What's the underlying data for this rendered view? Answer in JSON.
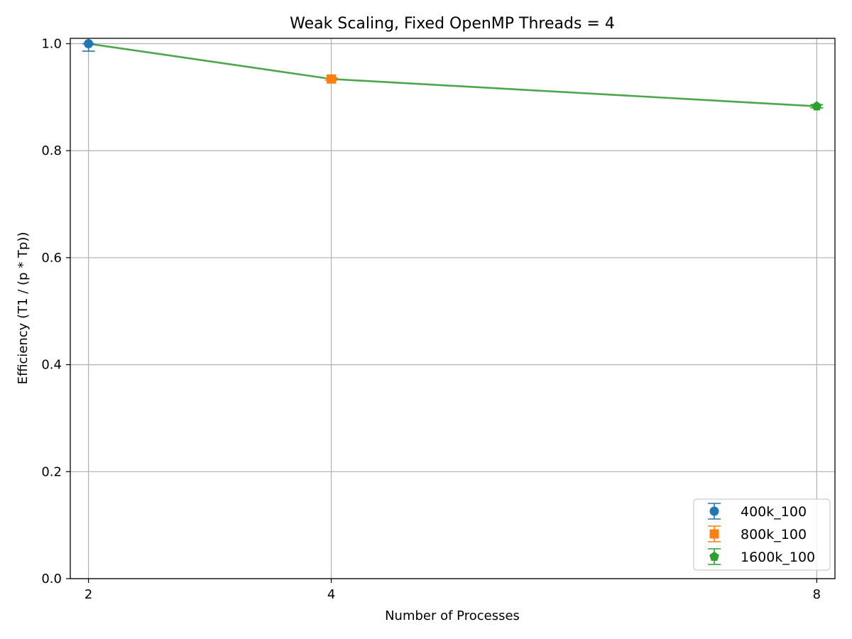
{
  "chart_data": {
    "type": "line",
    "title": "Weak Scaling, Fixed OpenMP Threads = 4",
    "xlabel": "Number of Processes",
    "ylabel": "Efficiency (T1 / (p * Tp))",
    "x_ticks": [
      "2",
      "4",
      "8"
    ],
    "y_ticks": [
      "0.0",
      "0.2",
      "0.4",
      "0.6",
      "0.8",
      "1.0"
    ],
    "xlim": [
      1.85,
      8.15
    ],
    "ylim": [
      0.0,
      1.01
    ],
    "grid": true,
    "legend_position": "lower-right",
    "line": {
      "x": [
        2,
        4,
        8
      ],
      "y": [
        1.0,
        0.934,
        0.883
      ],
      "color": "#4ca64c"
    },
    "series": [
      {
        "name": "400k_100",
        "x": 2,
        "y": 1.0,
        "err_low": 0.014,
        "err_high": 0.0,
        "marker": "circle",
        "color": "#1f77b4"
      },
      {
        "name": "800k_100",
        "x": 4,
        "y": 0.934,
        "err_low": 0.002,
        "err_high": 0.002,
        "marker": "square",
        "color": "#ff7f0e"
      },
      {
        "name": "1600k_100",
        "x": 8,
        "y": 0.883,
        "err_low": 0.003,
        "err_high": 0.003,
        "marker": "pentagon",
        "color": "#2ca02c"
      }
    ]
  }
}
